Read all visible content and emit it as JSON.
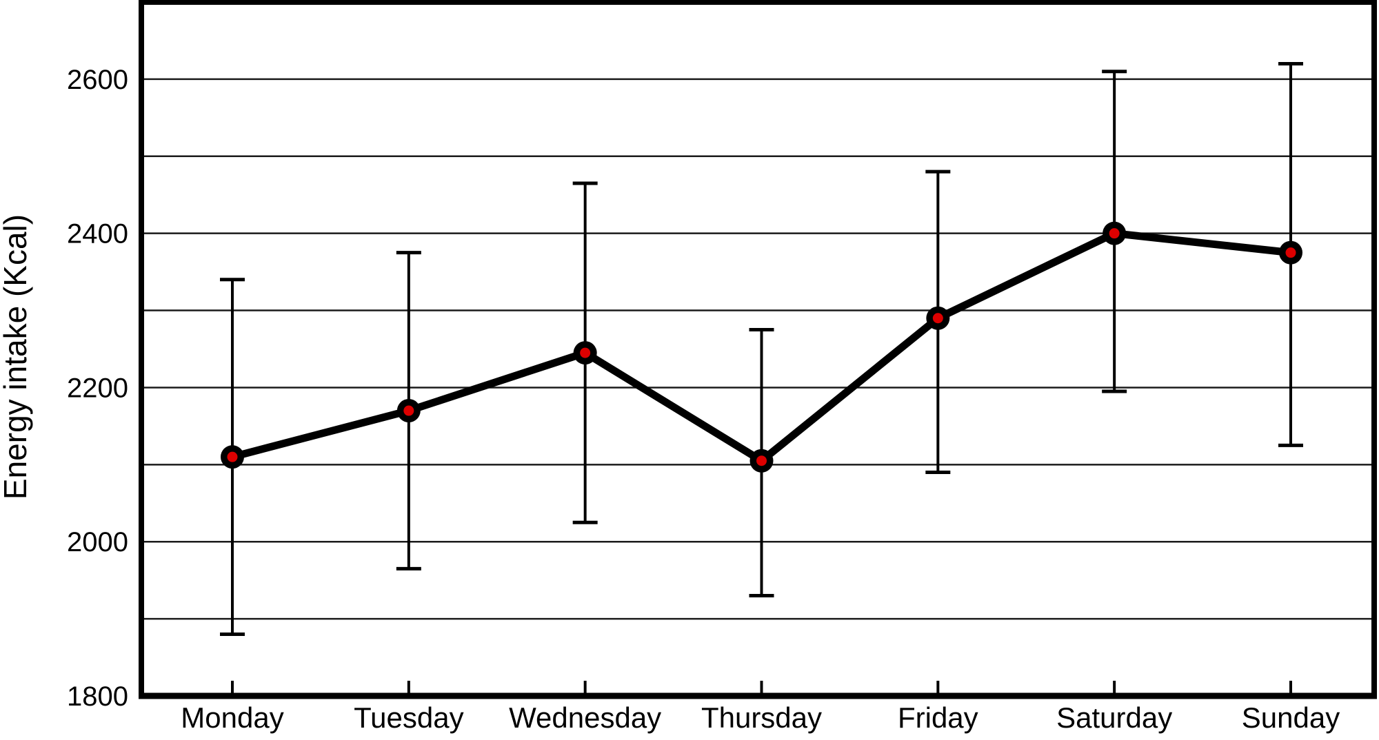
{
  "chart_data": {
    "type": "line",
    "title": "",
    "ylabel": "Energy intake (Kcal)",
    "xlabel": "",
    "categories": [
      "Monday",
      "Tuesday",
      "Wednesday",
      "Thursday",
      "Friday",
      "Saturday",
      "Sunday"
    ],
    "series": [
      {
        "name": "Energy intake",
        "values": [
          2110,
          2170,
          2245,
          2105,
          2290,
          2400,
          2375
        ],
        "error_upper": [
          2340,
          2375,
          2465,
          2275,
          2480,
          2610,
          2620
        ],
        "error_lower": [
          1880,
          1965,
          2025,
          1930,
          2090,
          2195,
          2125
        ]
      }
    ],
    "ylim": [
      1800,
      2700
    ],
    "ytick_labeled": [
      1800,
      2000,
      2200,
      2400,
      2600
    ],
    "gridline_step": 100,
    "grid": "horizontal",
    "legend": "none",
    "colors": {
      "line": "#000000",
      "marker_outer": "#000000",
      "marker_inner": "#dd0000",
      "error_bar": "#000000",
      "gridline": "#1a1a1a",
      "border": "#000000",
      "background": "#ffffff",
      "text": "#000000"
    }
  }
}
